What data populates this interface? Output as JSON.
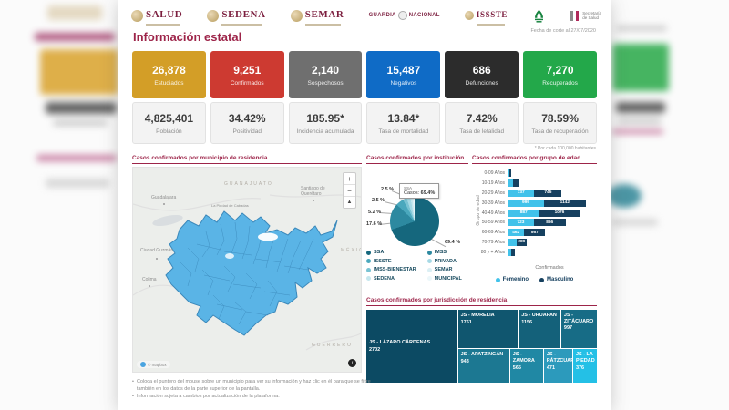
{
  "header": {
    "logos": {
      "salud": "SALUD",
      "sedena": "SEDENA",
      "semar": "SEMAR",
      "guardia_left": "GUARDIA",
      "guardia_right": "NACIONAL",
      "issste": "ISSSTE",
      "ssalud_line1": "Secretaría",
      "ssalud_line2": "de Salud"
    },
    "date_note": "Fecha de corte al 27/07/2020"
  },
  "title": "Información estatal",
  "stats": {
    "row1": [
      {
        "value": "26,878",
        "label": "Estudiados",
        "color": "#d39e27"
      },
      {
        "value": "9,251",
        "label": "Confirmados",
        "color": "#cd3a31"
      },
      {
        "value": "2,140",
        "label": "Sospechosos",
        "color": "#6f6f6f"
      },
      {
        "value": "15,487",
        "label": "Negativos",
        "color": "#0f6bc6"
      },
      {
        "value": "686",
        "label": "Defunciones",
        "color": "#2c2c2c"
      },
      {
        "value": "7,270",
        "label": "Recuperados",
        "color": "#23a84a"
      }
    ],
    "row2": [
      {
        "value": "4,825,401",
        "label": "Población"
      },
      {
        "value": "34.42%",
        "label": "Positividad"
      },
      {
        "value": "185.95*",
        "label": "Incidencia acumulada"
      },
      {
        "value": "13.84*",
        "label": "Tasa de mortalidad"
      },
      {
        "value": "7.42%",
        "label": "Tasa de letalidad"
      },
      {
        "value": "78.59%",
        "label": "Tasa de recuperación"
      }
    ],
    "rate_note": "* Por cada 100,000 habitantes"
  },
  "map": {
    "title": "Casos confirmados por municipio de residencia",
    "cities": [
      "Guadalajara",
      "GUANAJUATO",
      "Santiago de\nQuerétaro",
      "La Piedad de Cabadas",
      "Ciudad Guzmán",
      "Colima",
      "MÉXICO",
      "GUERRERO"
    ],
    "controls": [
      "+",
      "−",
      "▲"
    ],
    "attribution": "© mapbox",
    "state_fill": "#5ab4e6"
  },
  "chart_data": [
    {
      "type": "pie",
      "title": "Casos confirmados por institución",
      "series": [
        {
          "name": "SSA",
          "pct": 69.4,
          "color": "#15677d"
        },
        {
          "name": "IMSS",
          "pct": 17.6,
          "color": "#2d89a0"
        },
        {
          "name": "ISSSTE",
          "pct": 5.2,
          "color": "#4aa8bd"
        },
        {
          "name": "IMSS-BIENESTAR",
          "pct": 2.5,
          "color": "#79c3d3"
        },
        {
          "name": "PRIVADA",
          "pct": 2.5,
          "color": "#a6d9e5"
        },
        {
          "name": "SEDENA",
          "pct": 1.2,
          "color": "#c5e7ee"
        },
        {
          "name": "SEMAR",
          "pct": 1.0,
          "color": "#dbeff4"
        },
        {
          "name": "MUNICIPAL",
          "pct": 0.6,
          "color": "#ecf7fa"
        }
      ],
      "callouts": [
        "2.5 %",
        "2.5 %",
        "5.2 %",
        "17.6 %",
        "69.4 %"
      ],
      "tooltip": {
        "title": "SSA",
        "label": "Casos: ",
        "value": "69.4%"
      },
      "legend_col1": [
        "SSA",
        "ISSSTE",
        "IMSS-BIENESTAR",
        "SEDENA"
      ],
      "legend_col2": [
        "IMSS",
        "PRIVADA",
        "SEMAR",
        "MUNICIPAL"
      ],
      "legend_position": "bottom"
    },
    {
      "type": "bar",
      "title": "Casos confirmados por grupo de edad",
      "orientation": "horizontal",
      "ylabel": "Grupo de edad",
      "xlabel": "Confirmados",
      "categories": [
        "0-09 Años",
        "10-19 Años",
        "20-29 Años",
        "30-39 Años",
        "40-49 Años",
        "50-59 Años",
        "60-69 Años",
        "70-79 Años",
        "80 y + Años"
      ],
      "series": [
        {
          "name": "Femenino",
          "color": "#41c2ea",
          "values": [
            45,
            148,
            737,
            999,
            887,
            723,
            462,
            239,
            98
          ]
        },
        {
          "name": "Masculino",
          "color": "#16405f",
          "values": [
            52,
            160,
            745,
            1142,
            1076,
            866,
            567,
            289,
            106
          ]
        }
      ],
      "legend": [
        "Femenino",
        "Masculino"
      ]
    },
    {
      "type": "treemap",
      "title": "Casos confirmados por jurisdicción de residencia",
      "cells": [
        {
          "name": "JS - LÁZARO CÁRDENAS",
          "value": "2702",
          "color": "#0c4a63"
        },
        {
          "name": "JS - MORELIA",
          "value": "1761",
          "color": "#10566f"
        },
        {
          "name": "JS - URUAPAN",
          "value": "1156",
          "color": "#14617a"
        },
        {
          "name": "JS - ZITÁCUARO",
          "value": "997",
          "color": "#176c86"
        },
        {
          "name": "JS - APATZINGÁN",
          "value": "943",
          "color": "#1c7892"
        },
        {
          "name": "JS - ZAMORA",
          "value": "565",
          "color": "#2088a4"
        },
        {
          "name": "JS - PÁTZCUARO",
          "value": "471",
          "color": "#2c9abc"
        },
        {
          "name": "JS - LA PIEDAD",
          "value": "376",
          "color": "#24c0e6"
        }
      ]
    }
  ],
  "footnotes": [
    "Coloca el puntero del mouse sobre un municipio para ver su información y haz clic en él para que se filtre también en los datos de la parte superior de la pantalla.",
    "Información sujeta a cambios por actualización de la plataforma."
  ],
  "accent": {
    "magenta": "#9d2449",
    "maroon": "#7c1f3f"
  }
}
